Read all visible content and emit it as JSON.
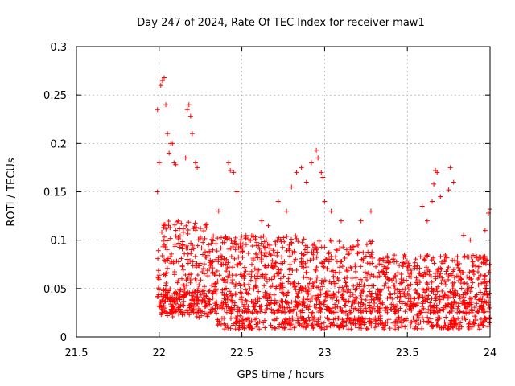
{
  "chart_data": {
    "type": "scatter",
    "title": "Day 247 of 2024, Rate Of TEC Index for receiver maw1",
    "xlabel": "GPS time / hours",
    "ylabel": "ROTI / TECUs",
    "xlim": [
      21.5,
      24
    ],
    "ylim": [
      0,
      0.3
    ],
    "xticks": [
      "21.5",
      "22",
      "22.5",
      "23",
      "23.5",
      "24"
    ],
    "yticks": [
      "0",
      "0.05",
      "0.1",
      "0.15",
      "0.2",
      "0.25",
      "0.3"
    ],
    "grid": true,
    "marker": "+",
    "color": "#ff0000",
    "series": [
      {
        "name": "ROTI",
        "points": [
          [
            21.99,
            0.235
          ],
          [
            21.99,
            0.15
          ],
          [
            22.0,
            0.18
          ],
          [
            22.01,
            0.26
          ],
          [
            22.02,
            0.265
          ],
          [
            22.03,
            0.268
          ],
          [
            22.04,
            0.24
          ],
          [
            22.05,
            0.21
          ],
          [
            22.06,
            0.19
          ],
          [
            22.07,
            0.2
          ],
          [
            22.08,
            0.2
          ],
          [
            22.09,
            0.18
          ],
          [
            22.1,
            0.178
          ],
          [
            22.17,
            0.235
          ],
          [
            22.18,
            0.24
          ],
          [
            22.19,
            0.228
          ],
          [
            22.2,
            0.21
          ],
          [
            22.16,
            0.185
          ],
          [
            22.22,
            0.18
          ],
          [
            22.23,
            0.175
          ],
          [
            22.36,
            0.13
          ],
          [
            22.42,
            0.18
          ],
          [
            22.43,
            0.172
          ],
          [
            22.45,
            0.17
          ],
          [
            22.47,
            0.15
          ],
          [
            22.62,
            0.12
          ],
          [
            22.66,
            0.115
          ],
          [
            22.72,
            0.14
          ],
          [
            22.77,
            0.13
          ],
          [
            22.8,
            0.155
          ],
          [
            22.83,
            0.17
          ],
          [
            22.86,
            0.175
          ],
          [
            22.89,
            0.16
          ],
          [
            22.92,
            0.18
          ],
          [
            22.95,
            0.193
          ],
          [
            22.96,
            0.185
          ],
          [
            22.98,
            0.17
          ],
          [
            22.99,
            0.165
          ],
          [
            23.0,
            0.14
          ],
          [
            23.04,
            0.13
          ],
          [
            23.1,
            0.12
          ],
          [
            23.22,
            0.12
          ],
          [
            23.28,
            0.13
          ],
          [
            23.59,
            0.135
          ],
          [
            23.62,
            0.12
          ],
          [
            23.65,
            0.14
          ],
          [
            23.66,
            0.158
          ],
          [
            23.67,
            0.172
          ],
          [
            23.68,
            0.17
          ],
          [
            23.7,
            0.145
          ],
          [
            23.75,
            0.152
          ],
          [
            23.76,
            0.175
          ],
          [
            23.78,
            0.16
          ],
          [
            23.99,
            0.128
          ],
          [
            24.0,
            0.132
          ],
          [
            23.97,
            0.11
          ],
          [
            23.88,
            0.1
          ],
          [
            23.84,
            0.105
          ]
        ]
      }
    ],
    "generator": {
      "seed": 247,
      "count": 2100,
      "x_start": 21.99,
      "x_end": 24.0,
      "band_low": 0.005,
      "band_high": 0.12
    }
  }
}
